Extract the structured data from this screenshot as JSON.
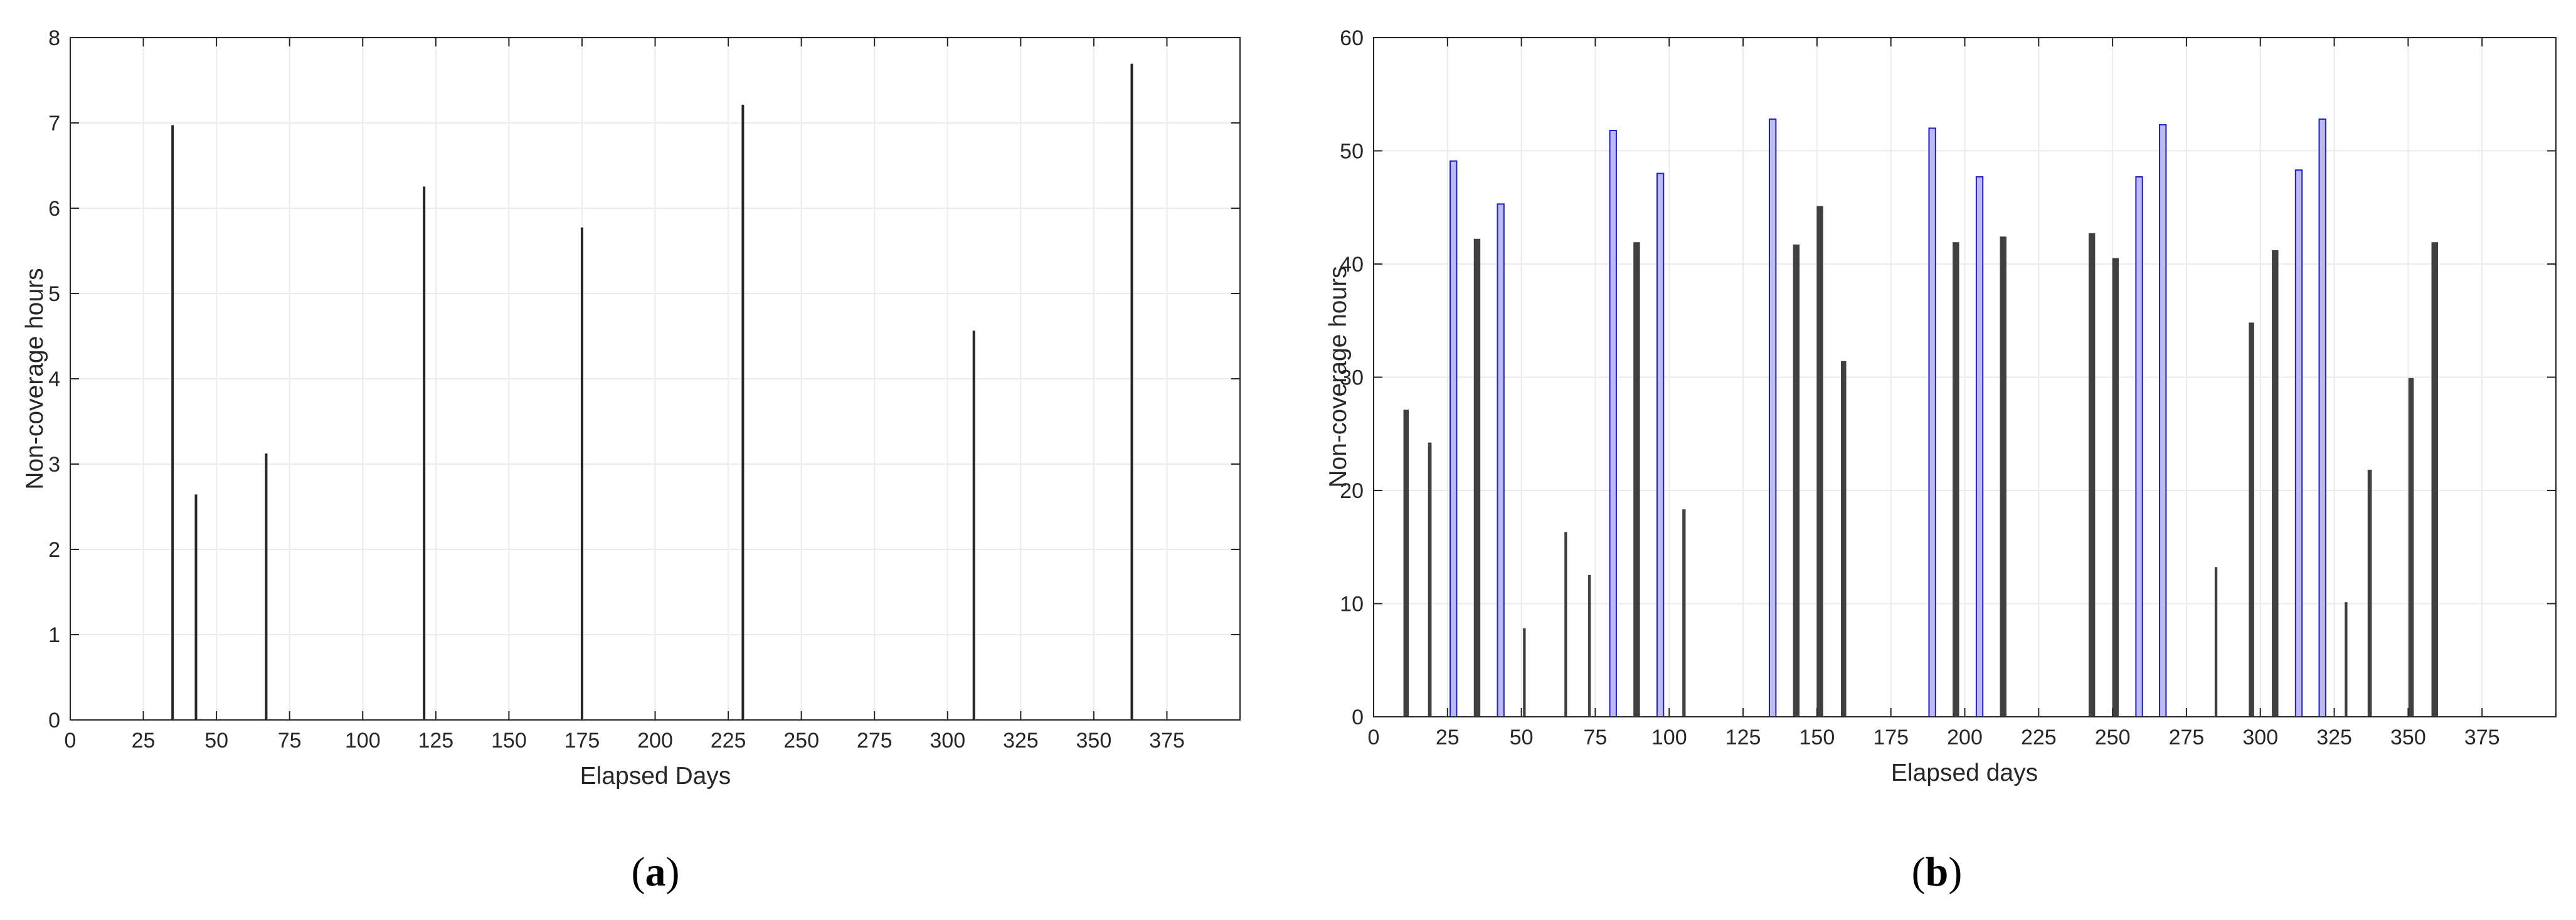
{
  "chart_data": [
    {
      "type": "bar",
      "caption": "(a)",
      "xlabel": "Elapsed Days",
      "ylabel": "Non-coverage hours",
      "xlim": [
        0,
        400
      ],
      "ylim": [
        0,
        8
      ],
      "xticks": [
        0,
        25,
        50,
        75,
        100,
        125,
        150,
        175,
        200,
        225,
        250,
        275,
        300,
        325,
        350,
        375
      ],
      "yticks": [
        0,
        1,
        2,
        3,
        4,
        5,
        6,
        7,
        8
      ],
      "grid": true,
      "bar_color": "#262626",
      "bar_edge": "#262626",
      "bar_width_days": 0.6,
      "points": [
        {
          "x": 35,
          "y": 6.97
        },
        {
          "x": 43,
          "y": 2.64
        },
        {
          "x": 67,
          "y": 3.12
        },
        {
          "x": 121,
          "y": 6.25
        },
        {
          "x": 175,
          "y": 5.77
        },
        {
          "x": 230,
          "y": 7.21
        },
        {
          "x": 309,
          "y": 4.56
        },
        {
          "x": 363,
          "y": 7.69
        }
      ]
    },
    {
      "type": "bar",
      "caption": "(b)",
      "xlabel": "Elapsed days",
      "ylabel": "Non-coverage hours",
      "xlim": [
        0,
        400
      ],
      "ylim": [
        0,
        60
      ],
      "xticks": [
        0,
        25,
        50,
        75,
        100,
        125,
        150,
        175,
        200,
        225,
        250,
        275,
        300,
        325,
        350,
        375
      ],
      "yticks": [
        0,
        10,
        20,
        30,
        40,
        50,
        60
      ],
      "grid": true,
      "bar_color": "#bbbbf2",
      "bar_edge": "#1f1fc8",
      "thin_bar_color": "#404040",
      "points": [
        {
          "x": 11,
          "y": 27.1,
          "w": 1.6
        },
        {
          "x": 19,
          "y": 24.2,
          "w": 1.0
        },
        {
          "x": 27,
          "y": 49.1,
          "w": 2.2
        },
        {
          "x": 35,
          "y": 42.2,
          "w": 2.0
        },
        {
          "x": 43,
          "y": 45.3,
          "w": 2.2
        },
        {
          "x": 51,
          "y": 7.8,
          "w": 0.7
        },
        {
          "x": 65,
          "y": 16.3,
          "w": 0.7
        },
        {
          "x": 73,
          "y": 12.5,
          "w": 0.7
        },
        {
          "x": 81,
          "y": 51.8,
          "w": 2.2
        },
        {
          "x": 89,
          "y": 41.9,
          "w": 2.0
        },
        {
          "x": 97,
          "y": 48.0,
          "w": 2.2
        },
        {
          "x": 105,
          "y": 18.3,
          "w": 0.9
        },
        {
          "x": 135,
          "y": 52.8,
          "w": 2.2
        },
        {
          "x": 143,
          "y": 41.7,
          "w": 2.0
        },
        {
          "x": 151,
          "y": 45.1,
          "w": 2.0
        },
        {
          "x": 159,
          "y": 31.4,
          "w": 1.6
        },
        {
          "x": 189,
          "y": 52.0,
          "w": 2.2
        },
        {
          "x": 197,
          "y": 41.9,
          "w": 2.0
        },
        {
          "x": 205,
          "y": 47.7,
          "w": 2.2
        },
        {
          "x": 213,
          "y": 42.4,
          "w": 2.0
        },
        {
          "x": 243,
          "y": 42.7,
          "w": 2.0
        },
        {
          "x": 251,
          "y": 40.5,
          "w": 2.0
        },
        {
          "x": 259,
          "y": 47.7,
          "w": 2.2
        },
        {
          "x": 267,
          "y": 52.3,
          "w": 2.2
        },
        {
          "x": 285,
          "y": 13.2,
          "w": 0.7
        },
        {
          "x": 297,
          "y": 34.8,
          "w": 1.6
        },
        {
          "x": 305,
          "y": 41.2,
          "w": 2.0
        },
        {
          "x": 313,
          "y": 48.3,
          "w": 2.2
        },
        {
          "x": 321,
          "y": 52.8,
          "w": 2.2
        },
        {
          "x": 329,
          "y": 10.1,
          "w": 0.7
        },
        {
          "x": 337,
          "y": 21.8,
          "w": 1.2
        },
        {
          "x": 351,
          "y": 29.9,
          "w": 1.6
        },
        {
          "x": 359,
          "y": 41.9,
          "w": 2.0
        }
      ]
    }
  ]
}
